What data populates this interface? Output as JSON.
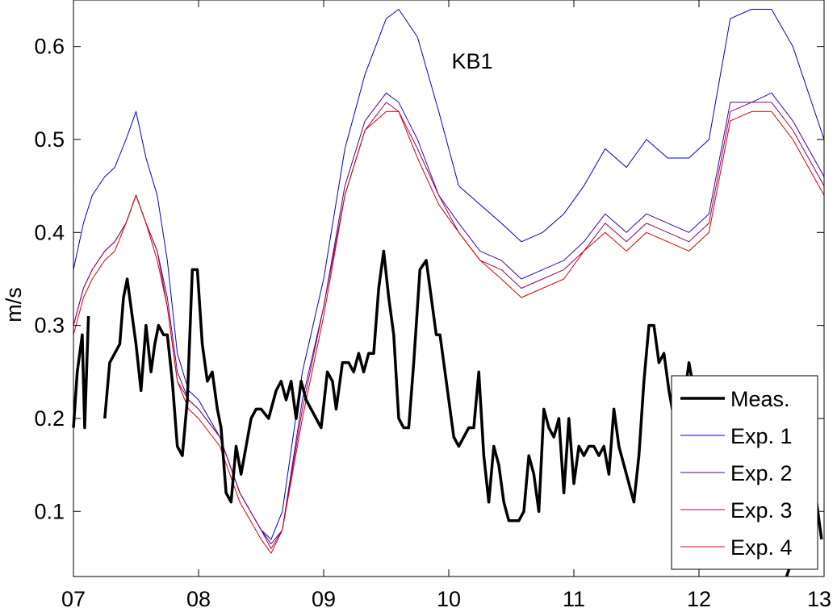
{
  "chart_data": {
    "type": "line",
    "title": "KB1",
    "xlabel": "",
    "ylabel": "m/s",
    "xlim": [
      7,
      13
    ],
    "ylim": [
      0.03,
      0.65
    ],
    "xticks": [
      7,
      8,
      9,
      10,
      11,
      12,
      13
    ],
    "xtick_labels": [
      "07",
      "08",
      "09",
      "10",
      "11",
      "12",
      "13"
    ],
    "yticks": [
      0.1,
      0.2,
      0.3,
      0.4,
      0.5,
      0.6
    ],
    "ytick_labels": [
      "0.1",
      "0.2",
      "0.3",
      "0.4",
      "0.5",
      "0.6"
    ],
    "grid": false,
    "legend": {
      "position": "bottom-right",
      "entries": [
        "Meas.",
        "Exp. 1",
        "Exp. 2",
        "Exp. 3",
        "Exp. 4"
      ]
    },
    "series": [
      {
        "name": "Meas.",
        "color": "#000000",
        "thick": true,
        "x": [
          7.0,
          7.03,
          7.07,
          7.09,
          7.12,
          null,
          7.25,
          7.29,
          7.33,
          7.37,
          7.4,
          7.43,
          7.47,
          7.5,
          7.54,
          7.58,
          7.62,
          7.65,
          7.68,
          7.72,
          7.75,
          7.79,
          7.83,
          7.87,
          7.91,
          7.95,
          7.99,
          8.03,
          8.07,
          8.11,
          8.15,
          8.18,
          8.22,
          8.26,
          8.3,
          8.34,
          8.38,
          8.42,
          8.46,
          8.5,
          8.56,
          8.62,
          8.66,
          8.7,
          8.74,
          8.78,
          8.82,
          8.86,
          8.9,
          8.94,
          8.98,
          9.03,
          9.07,
          9.1,
          9.15,
          9.2,
          9.24,
          9.28,
          9.32,
          9.36,
          9.4,
          9.44,
          9.48,
          9.52,
          9.56,
          9.6,
          9.64,
          9.68,
          9.72,
          9.77,
          9.82,
          9.86,
          9.9,
          9.93,
          9.96,
          10.0,
          10.04,
          10.08,
          10.12,
          10.16,
          10.2,
          10.24,
          10.28,
          10.32,
          10.36,
          10.4,
          10.44,
          10.48,
          10.52,
          10.56,
          10.6,
          10.64,
          10.68,
          10.72,
          10.76,
          10.8,
          10.84,
          10.88,
          10.92,
          10.96,
          11.0,
          11.04,
          11.08,
          11.12,
          11.16,
          11.2,
          11.24,
          11.28,
          11.32,
          11.36,
          11.4,
          11.44,
          11.48,
          11.52,
          11.56,
          11.6,
          11.64,
          11.68,
          11.72,
          11.76,
          11.8,
          11.84,
          11.88,
          11.92,
          11.96,
          null,
          12.7,
          12.75,
          12.8,
          12.85,
          12.9,
          12.94,
          12.98
        ],
        "y": [
          0.19,
          0.25,
          0.29,
          0.19,
          0.31,
          null,
          0.2,
          0.26,
          0.27,
          0.28,
          0.33,
          0.35,
          0.31,
          0.28,
          0.23,
          0.3,
          0.25,
          0.28,
          0.3,
          0.29,
          0.29,
          0.24,
          0.17,
          0.16,
          0.22,
          0.36,
          0.36,
          0.28,
          0.24,
          0.25,
          0.21,
          0.19,
          0.12,
          0.11,
          0.17,
          0.14,
          0.17,
          0.2,
          0.21,
          0.21,
          0.2,
          0.23,
          0.24,
          0.22,
          0.24,
          0.2,
          0.24,
          0.22,
          0.21,
          0.2,
          0.19,
          0.25,
          0.24,
          0.21,
          0.26,
          0.26,
          0.25,
          0.27,
          0.25,
          0.27,
          0.27,
          0.34,
          0.38,
          0.33,
          0.29,
          0.2,
          0.19,
          0.19,
          0.26,
          0.36,
          0.37,
          0.33,
          0.29,
          0.29,
          0.26,
          0.22,
          0.18,
          0.17,
          0.18,
          0.19,
          0.19,
          0.25,
          0.16,
          0.11,
          0.17,
          0.15,
          0.11,
          0.09,
          0.09,
          0.09,
          0.1,
          0.16,
          0.14,
          0.1,
          0.21,
          0.19,
          0.18,
          0.2,
          0.12,
          0.2,
          0.13,
          0.17,
          0.16,
          0.17,
          0.17,
          0.16,
          0.17,
          0.14,
          0.21,
          0.17,
          0.15,
          0.13,
          0.11,
          0.16,
          0.24,
          0.3,
          0.3,
          0.26,
          0.27,
          0.23,
          0.2,
          0.19,
          0.22,
          0.26,
          0.23,
          null,
          0.03,
          0.05,
          0.08,
          0.1,
          0.08,
          0.11,
          0.07
        ]
      },
      {
        "name": "Exp. 1",
        "color": "#0000cc",
        "thick": false,
        "x": [
          7.0,
          7.08,
          7.15,
          7.25,
          7.33,
          7.42,
          7.5,
          7.58,
          7.67,
          7.75,
          7.83,
          7.92,
          8.0,
          8.17,
          8.33,
          8.5,
          8.58,
          8.67,
          8.83,
          9.0,
          9.17,
          9.33,
          9.5,
          9.6,
          9.75,
          9.92,
          10.08,
          10.25,
          10.42,
          10.58,
          10.75,
          10.92,
          11.08,
          11.25,
          11.42,
          11.58,
          11.75,
          11.92,
          12.08,
          12.25,
          12.42,
          12.58,
          12.75,
          13.0
        ],
        "y": [
          0.36,
          0.41,
          0.44,
          0.46,
          0.47,
          0.5,
          0.53,
          0.48,
          0.44,
          0.37,
          0.27,
          0.23,
          0.22,
          0.18,
          0.12,
          0.08,
          0.07,
          0.1,
          0.25,
          0.35,
          0.49,
          0.57,
          0.63,
          0.64,
          0.61,
          0.53,
          0.45,
          0.43,
          0.41,
          0.39,
          0.4,
          0.42,
          0.45,
          0.49,
          0.47,
          0.5,
          0.48,
          0.48,
          0.5,
          0.63,
          0.64,
          0.64,
          0.6,
          0.5
        ]
      },
      {
        "name": "Exp. 2",
        "color": "#4400aa",
        "thick": false,
        "x": [
          7.0,
          7.08,
          7.15,
          7.25,
          7.33,
          7.42,
          7.5,
          7.58,
          7.67,
          7.75,
          7.83,
          7.92,
          8.0,
          8.17,
          8.33,
          8.5,
          8.58,
          8.67,
          8.83,
          9.0,
          9.17,
          9.33,
          9.5,
          9.6,
          9.75,
          9.92,
          10.08,
          10.25,
          10.42,
          10.58,
          10.75,
          10.92,
          11.08,
          11.25,
          11.42,
          11.58,
          11.75,
          11.92,
          12.08,
          12.25,
          12.42,
          12.58,
          12.75,
          13.0
        ],
        "y": [
          0.3,
          0.34,
          0.36,
          0.38,
          0.39,
          0.41,
          0.44,
          0.41,
          0.38,
          0.33,
          0.25,
          0.22,
          0.21,
          0.18,
          0.12,
          0.08,
          0.065,
          0.08,
          0.22,
          0.32,
          0.45,
          0.52,
          0.55,
          0.54,
          0.5,
          0.44,
          0.41,
          0.38,
          0.37,
          0.35,
          0.36,
          0.37,
          0.39,
          0.42,
          0.4,
          0.42,
          0.41,
          0.4,
          0.42,
          0.54,
          0.54,
          0.55,
          0.52,
          0.46
        ]
      },
      {
        "name": "Exp. 3",
        "color": "#990066",
        "thick": false,
        "x": [
          7.0,
          7.08,
          7.15,
          7.25,
          7.33,
          7.42,
          7.5,
          7.58,
          7.67,
          7.75,
          7.83,
          7.92,
          8.0,
          8.17,
          8.33,
          8.5,
          8.58,
          8.67,
          8.83,
          9.0,
          9.17,
          9.33,
          9.5,
          9.6,
          9.75,
          9.92,
          10.08,
          10.25,
          10.42,
          10.58,
          10.75,
          10.92,
          11.08,
          11.25,
          11.42,
          11.58,
          11.75,
          11.92,
          12.08,
          12.25,
          12.42,
          12.58,
          12.75,
          13.0
        ],
        "y": [
          0.3,
          0.34,
          0.36,
          0.38,
          0.39,
          0.41,
          0.44,
          0.41,
          0.38,
          0.32,
          0.24,
          0.22,
          0.21,
          0.18,
          0.12,
          0.08,
          0.06,
          0.08,
          0.21,
          0.32,
          0.44,
          0.51,
          0.54,
          0.53,
          0.49,
          0.44,
          0.4,
          0.37,
          0.36,
          0.34,
          0.35,
          0.36,
          0.38,
          0.41,
          0.39,
          0.41,
          0.4,
          0.39,
          0.41,
          0.53,
          0.54,
          0.54,
          0.51,
          0.45
        ]
      },
      {
        "name": "Exp. 4",
        "color": "#dd0000",
        "thick": false,
        "x": [
          7.0,
          7.08,
          7.15,
          7.25,
          7.33,
          7.42,
          7.5,
          7.58,
          7.67,
          7.75,
          7.83,
          7.92,
          8.0,
          8.17,
          8.33,
          8.5,
          8.58,
          8.67,
          8.83,
          9.0,
          9.17,
          9.33,
          9.5,
          9.6,
          9.75,
          9.92,
          10.08,
          10.25,
          10.42,
          10.58,
          10.75,
          10.92,
          11.08,
          11.25,
          11.42,
          11.58,
          11.75,
          11.92,
          12.08,
          12.25,
          12.42,
          12.58,
          12.75,
          13.0
        ],
        "y": [
          0.29,
          0.33,
          0.35,
          0.37,
          0.38,
          0.41,
          0.44,
          0.41,
          0.37,
          0.32,
          0.24,
          0.21,
          0.2,
          0.17,
          0.11,
          0.07,
          0.055,
          0.08,
          0.2,
          0.31,
          0.44,
          0.51,
          0.53,
          0.53,
          0.48,
          0.43,
          0.4,
          0.37,
          0.35,
          0.33,
          0.34,
          0.35,
          0.38,
          0.4,
          0.38,
          0.4,
          0.39,
          0.38,
          0.4,
          0.52,
          0.53,
          0.53,
          0.5,
          0.44
        ]
      }
    ]
  }
}
